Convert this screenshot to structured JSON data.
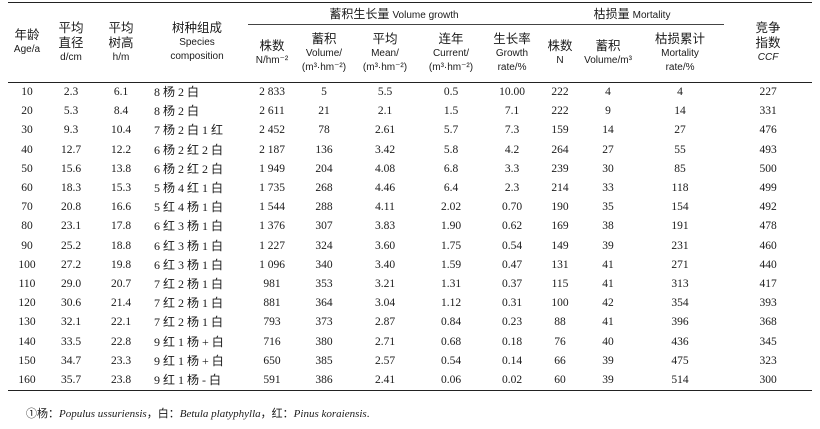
{
  "headers": {
    "age": {
      "cn": "年龄",
      "en": "Age/a"
    },
    "dbh": {
      "cn1": "平均",
      "cn2": "直径",
      "en": "d/cm"
    },
    "height": {
      "cn1": "平均",
      "cn2": "树高",
      "en": "h/m"
    },
    "composition": {
      "cn": "树种组成",
      "en1": "Species",
      "en2": "composition"
    },
    "density": {
      "cn": "株数",
      "en": "N/hm⁻²"
    },
    "volume": {
      "cn": "蓄积",
      "en1": "Volume/",
      "en2": "(m³·hm⁻²)"
    },
    "volume_growth_group": {
      "cn": "蓄积生长量",
      "en": "Volume growth"
    },
    "mean": {
      "cn": "平均",
      "en1": "Mean/",
      "en2": "(m³·hm⁻²)"
    },
    "current": {
      "cn": "连年",
      "en1": "Current/",
      "en2": "(m³·hm⁻²)"
    },
    "growth_rate": {
      "cn": "生长率",
      "en1": "Growth",
      "en2": "rate/%"
    },
    "mortality_group": {
      "cn": "枯损量",
      "en": "Mortality"
    },
    "mort_n": {
      "cn": "株数",
      "en": "N"
    },
    "mort_vol": {
      "cn": "蓄积",
      "en": "Volume/m³"
    },
    "mort_cum": {
      "cn": "枯损累计",
      "en1": "Mortality",
      "en2": "rate/%"
    },
    "ccf": {
      "cn1": "竞争",
      "cn2": "指数",
      "en": "CCF"
    }
  },
  "rows": [
    [
      "10",
      "2.3",
      "6.1",
      "8 杨 2 白",
      "2 833",
      "5",
      "5.5",
      "0.5",
      "10.00",
      "222",
      "4",
      "4",
      "227"
    ],
    [
      "20",
      "5.3",
      "8.4",
      "8 杨 2 白",
      "2 611",
      "21",
      "2.1",
      "1.5",
      "7.1",
      "222",
      "9",
      "14",
      "331"
    ],
    [
      "30",
      "9.3",
      "10.4",
      "7 杨 2 白 1 红",
      "2 452",
      "78",
      "2.61",
      "5.7",
      "7.3",
      "159",
      "14",
      "27",
      "476"
    ],
    [
      "40",
      "12.7",
      "12.2",
      "6 杨 2 红 2 白",
      "2 187",
      "136",
      "3.42",
      "5.8",
      "4.2",
      "264",
      "27",
      "55",
      "493"
    ],
    [
      "50",
      "15.6",
      "13.8",
      "6 杨 2 红 2 白",
      "1 949",
      "204",
      "4.08",
      "6.8",
      "3.3",
      "239",
      "30",
      "85",
      "500"
    ],
    [
      "60",
      "18.3",
      "15.3",
      "5 杨 4 红 1 白",
      "1 735",
      "268",
      "4.46",
      "6.4",
      "2.3",
      "214",
      "33",
      "118",
      "499"
    ],
    [
      "70",
      "20.8",
      "16.6",
      "5 红 4 杨 1 白",
      "1 544",
      "288",
      "4.11",
      "2.02",
      "0.70",
      "190",
      "35",
      "154",
      "492"
    ],
    [
      "80",
      "23.1",
      "17.8",
      "6 红 3 杨 1 白",
      "1 376",
      "307",
      "3.83",
      "1.90",
      "0.62",
      "169",
      "38",
      "191",
      "478"
    ],
    [
      "90",
      "25.2",
      "18.8",
      "6 红 3 杨 1 白",
      "1 227",
      "324",
      "3.60",
      "1.75",
      "0.54",
      "149",
      "39",
      "231",
      "460"
    ],
    [
      "100",
      "27.2",
      "19.8",
      "6 红 3 杨 1 白",
      "1 096",
      "340",
      "3.40",
      "1.59",
      "0.47",
      "131",
      "41",
      "271",
      "440"
    ],
    [
      "110",
      "29.0",
      "20.7",
      "7 红 2 杨 1 白",
      "981",
      "353",
      "3.21",
      "1.31",
      "0.37",
      "115",
      "41",
      "313",
      "417"
    ],
    [
      "120",
      "30.6",
      "21.4",
      "7 红 2 杨 1 白",
      "881",
      "364",
      "3.04",
      "1.12",
      "0.31",
      "100",
      "42",
      "354",
      "393"
    ],
    [
      "130",
      "32.1",
      "22.1",
      "7 红 2 杨 1 白",
      "793",
      "373",
      "2.87",
      "0.84",
      "0.23",
      "88",
      "41",
      "396",
      "368"
    ],
    [
      "140",
      "33.5",
      "22.8",
      "9 红 1 杨 + 白",
      "716",
      "380",
      "2.71",
      "0.68",
      "0.18",
      "76",
      "40",
      "436",
      "345"
    ],
    [
      "150",
      "34.7",
      "23.3",
      "9 红 1 杨 + 白",
      "650",
      "385",
      "2.57",
      "0.54",
      "0.14",
      "66",
      "39",
      "475",
      "323"
    ],
    [
      "160",
      "35.7",
      "23.8",
      "9 红 1 杨 - 白",
      "591",
      "386",
      "2.41",
      "0.06",
      "0.02",
      "60",
      "39",
      "514",
      "300"
    ]
  ],
  "footnote": {
    "prefix": "①杨：",
    "sp1": "Populus ussuriensis",
    "sep1": "，白：",
    "sp2": "Betula platyphylla",
    "sep2": "，红：",
    "sp3": "Pinus koraiensis",
    "end": "."
  }
}
